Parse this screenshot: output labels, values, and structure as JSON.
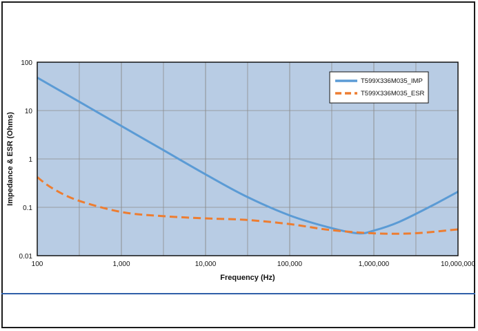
{
  "chart_data": {
    "type": "line",
    "title": "",
    "xlabel": "Frequency (Hz)",
    "ylabel": "Impedance & ESR (Ohms)",
    "xscale": "log",
    "yscale": "log",
    "xlim": [
      100,
      10000000
    ],
    "ylim": [
      0.01,
      100
    ],
    "grid": true,
    "legend_position": "top-right",
    "plot_background": "#b8cce4",
    "x_tick_labels": [
      "100",
      "1,000",
      "10,000",
      "100,000",
      "1,000,000",
      "10,000,000"
    ],
    "y_tick_labels": [
      "0.01",
      "0.1",
      "1",
      "10",
      "100"
    ],
    "series": [
      {
        "name": "T599X336M035_IMP",
        "color": "#5b9bd5",
        "style": "solid",
        "x": [
          100,
          300,
          1000,
          3000,
          10000,
          30000,
          100000,
          300000,
          650000,
          1000000,
          2000000,
          5000000,
          10000000
        ],
        "y": [
          48,
          16,
          4.8,
          1.6,
          0.48,
          0.17,
          0.068,
          0.038,
          0.029,
          0.033,
          0.05,
          0.11,
          0.21
        ]
      },
      {
        "name": "T599X336M035_ESR",
        "color": "#ed7d31",
        "style": "dashed",
        "x": [
          100,
          150,
          300,
          1000,
          3000,
          10000,
          30000,
          100000,
          300000,
          1000000,
          3000000,
          10000000
        ],
        "y": [
          0.42,
          0.25,
          0.14,
          0.08,
          0.066,
          0.059,
          0.055,
          0.045,
          0.034,
          0.029,
          0.029,
          0.035
        ]
      }
    ]
  }
}
